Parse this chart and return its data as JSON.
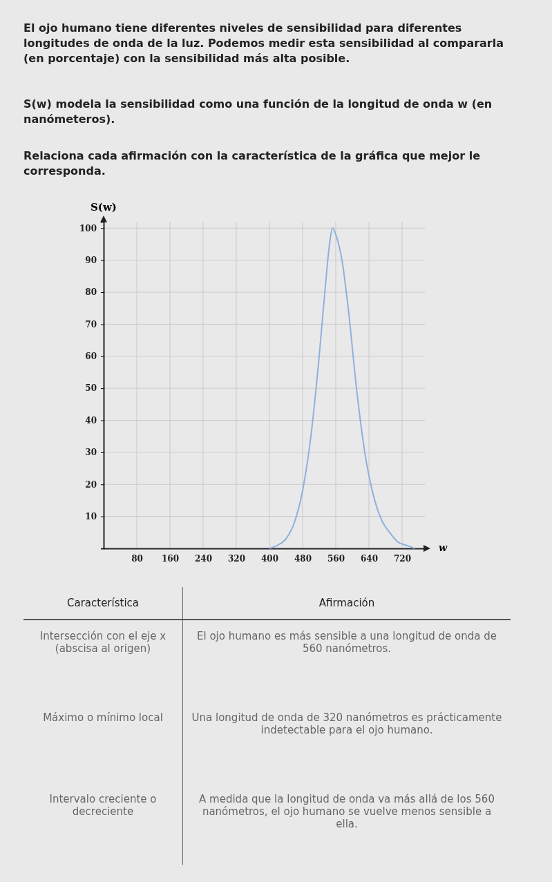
{
  "chart_data": {
    "type": "line",
    "xlabel": "w",
    "ylabel": "S(w)",
    "x": [
      400,
      420,
      440,
      460,
      480,
      500,
      520,
      535,
      545,
      552,
      560,
      575,
      590,
      610,
      630,
      650,
      670,
      690,
      710,
      730,
      750
    ],
    "values": [
      0,
      1,
      3,
      8,
      18,
      35,
      60,
      82,
      95,
      100,
      98,
      90,
      75,
      50,
      30,
      17,
      9,
      5,
      2,
      1,
      0
    ],
    "color": "#8fb0dc",
    "xlim": [
      0,
      775
    ],
    "xticks": [
      80,
      160,
      240,
      320,
      400,
      480,
      560,
      640,
      720
    ],
    "ylim": [
      0,
      102
    ],
    "yticks": [
      10,
      20,
      30,
      40,
      50,
      60,
      70,
      80,
      90,
      100
    ],
    "grid": true,
    "marker": "none",
    "line_style": "solid",
    "annotations": [
      "El ojo humano tiene diferentes niveles de sensibilidad para diferentes longitudes de onda de la luz. Podemos medir esta sensibilidad al compararla (en porcentaje) con la sensibilidad más alta posible.",
      "S(w) modela la sensibilidad como una función de la longitud de onda w (en nanómeteros).",
      "Relaciona cada afirmación con la característica de la gráfica que mejor le corresponda.",
      "Característica",
      "Afirmación",
      "Intersección con el eje x (abscisa al origen)",
      "El ojo humano es más sensible a una longitud de onda de 560 nanómetros.",
      "Máximo o mínimo local",
      "Una longitud de onda de 320 nanómetros es prácticamente indetectable para el ojo humano.",
      "Intervalo creciente o decreciente",
      "A medida que la longitud de onda va más allá de los 560 nanómetros, el ojo humano se vuelve menos sensible a ella."
    ]
  }
}
